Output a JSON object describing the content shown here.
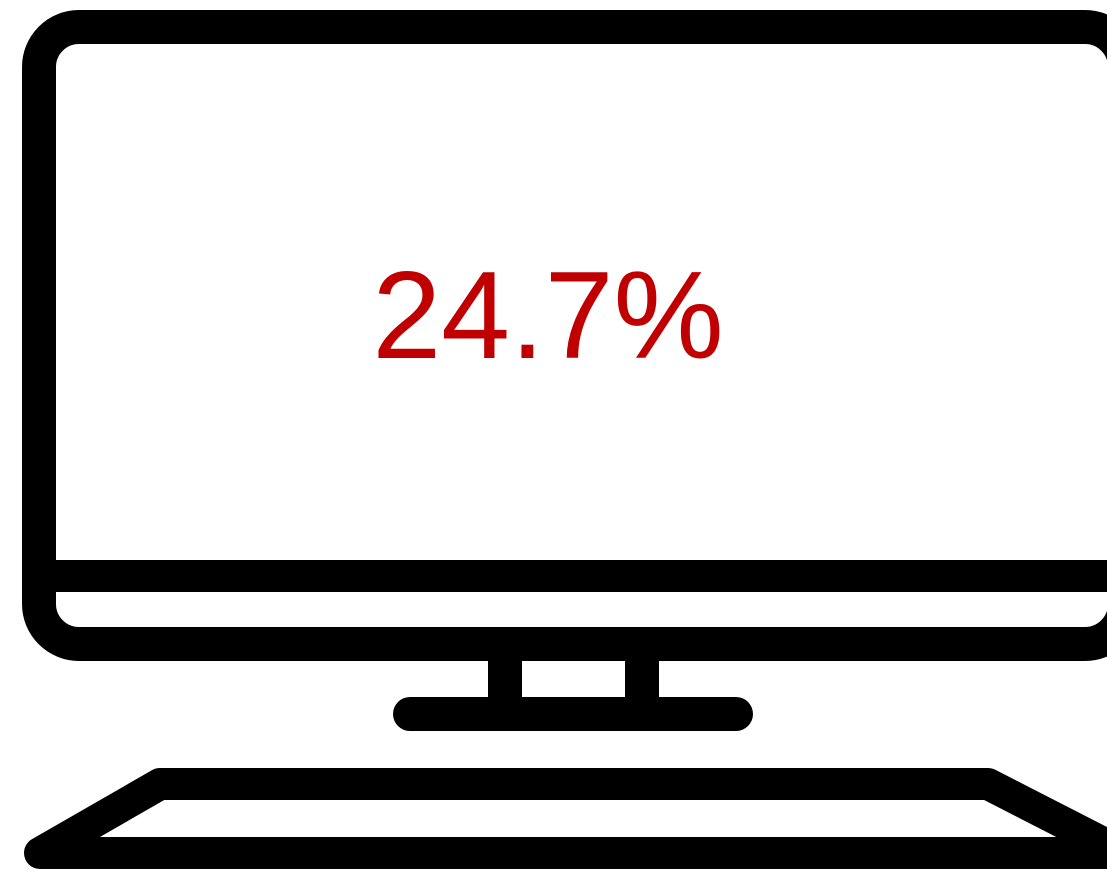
{
  "stat": "24.7%"
}
